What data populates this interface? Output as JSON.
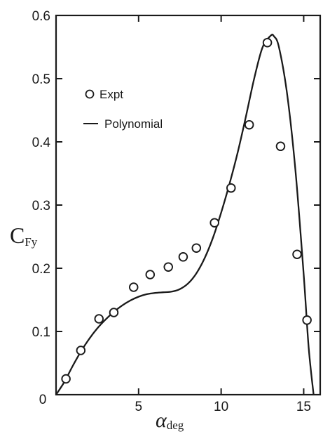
{
  "chart_data": {
    "type": "scatter",
    "title": "",
    "xlabel": {
      "main": "α",
      "sub": "deg"
    },
    "ylabel": {
      "main": "C",
      "sub": "Fy"
    },
    "xlim": [
      0,
      16
    ],
    "ylim": [
      0,
      0.6
    ],
    "xticks": [
      5,
      10,
      15
    ],
    "yticks": [
      0.1,
      0.2,
      0.3,
      0.4,
      0.5,
      0.6
    ],
    "xtick_labels": [
      "5",
      "10",
      "15"
    ],
    "ytick_labels": [
      "0.1",
      "0.2",
      "0.3",
      "0.4",
      "0.5",
      "0.6"
    ],
    "origin_label": "0",
    "legend": {
      "placement": "upper-left",
      "entries": [
        {
          "label": "Expt",
          "marker": "open-circle"
        },
        {
          "label": "Polynomial",
          "marker": "line"
        }
      ]
    },
    "series": [
      {
        "name": "Expt",
        "kind": "points",
        "x": [
          0.6,
          1.5,
          2.6,
          3.5,
          4.7,
          5.7,
          6.8,
          7.7,
          8.5,
          9.6,
          10.6,
          11.7,
          12.8,
          13.6,
          14.6,
          15.2
        ],
        "y": [
          0.025,
          0.07,
          0.12,
          0.13,
          0.17,
          0.19,
          0.202,
          0.218,
          0.232,
          0.272,
          0.327,
          0.427,
          0.557,
          0.393,
          0.222,
          0.118
        ]
      },
      {
        "name": "Polynomial",
        "kind": "curve",
        "x": [
          0,
          0.5,
          1,
          1.5,
          2,
          2.5,
          3,
          3.5,
          4,
          4.5,
          5,
          5.5,
          6,
          6.5,
          7,
          7.5,
          8,
          8.5,
          9,
          9.5,
          10,
          10.5,
          11,
          11.5,
          12,
          12.5,
          13,
          13.2,
          13.5,
          14,
          14.5,
          15,
          15.3,
          15.6
        ],
        "y": [
          0,
          0.02,
          0.045,
          0.068,
          0.088,
          0.105,
          0.119,
          0.131,
          0.141,
          0.149,
          0.155,
          0.159,
          0.161,
          0.162,
          0.163,
          0.167,
          0.176,
          0.192,
          0.216,
          0.248,
          0.288,
          0.333,
          0.383,
          0.44,
          0.5,
          0.549,
          0.568,
          0.567,
          0.55,
          0.475,
          0.355,
          0.19,
          0.075,
          0
        ]
      }
    ]
  }
}
